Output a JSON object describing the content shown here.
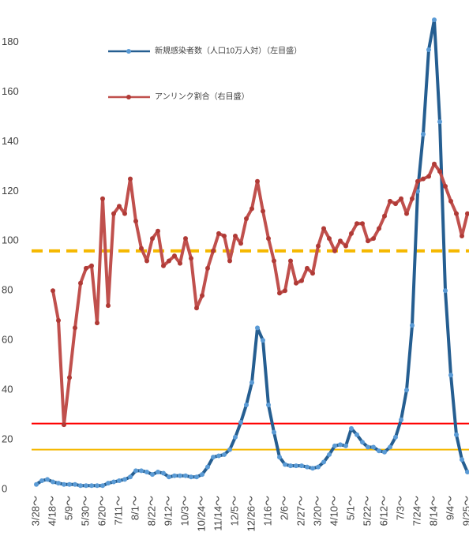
{
  "chart_data": {
    "type": "line",
    "categories": [
      "3/28～",
      null,
      null,
      "4/18～",
      null,
      null,
      "5/9～",
      null,
      null,
      "5/30～",
      null,
      null,
      "6/20～",
      null,
      null,
      "7/11～",
      null,
      null,
      "8/1～",
      null,
      null,
      "8/22～",
      null,
      null,
      "9/12～",
      null,
      null,
      "10/3～",
      null,
      null,
      "10/24～",
      null,
      null,
      "11/14～",
      null,
      null,
      "12/5～",
      null,
      null,
      "12/26～",
      null,
      null,
      "1/16～",
      null,
      null,
      "2/6～",
      null,
      null,
      "2/27～",
      null,
      null,
      "3/20～",
      null,
      null,
      "4/10～",
      null,
      null,
      "5/1～",
      null,
      null,
      "5/22～",
      null,
      null,
      "6/12～",
      null,
      null,
      "7/3～",
      null,
      null,
      "7/24～",
      null,
      null,
      "8/14～",
      null,
      null,
      "9/4～",
      null,
      null,
      "9/25～"
    ],
    "series": [
      {
        "name": "新規感染者数（人口10万人対）（左目盛）",
        "color": "#255e91",
        "marker_color": "#5b9bd5",
        "values": [
          2,
          3.5,
          4,
          3,
          2.5,
          2,
          2,
          2,
          1.5,
          1.5,
          1.5,
          1.5,
          1.5,
          2.5,
          3,
          3.5,
          4,
          5,
          7.5,
          7.5,
          7,
          6,
          7,
          6.5,
          5,
          5.5,
          5.5,
          5.5,
          5,
          5,
          6,
          9,
          13,
          13.5,
          14,
          16,
          21,
          27,
          34,
          43,
          65,
          60,
          34,
          23,
          13,
          10,
          9.5,
          9.5,
          9.5,
          9,
          8.5,
          9,
          11,
          14,
          17.5,
          18,
          17.5,
          24.5,
          22,
          19,
          17,
          17,
          15.5,
          15,
          17,
          21,
          28,
          40,
          66,
          120,
          143,
          177,
          189,
          148,
          80,
          46,
          22,
          12,
          7
        ]
      },
      {
        "name": "アンリンク割合（右目盛）",
        "color": "#c0504d",
        "marker_color": "#b03a36",
        "values": [
          null,
          null,
          null,
          80,
          68,
          26,
          45,
          65,
          83,
          89,
          90,
          67,
          117,
          74,
          111,
          114,
          111,
          125,
          108,
          97,
          92,
          101,
          104,
          90,
          92,
          94,
          91,
          101,
          93,
          73,
          78,
          89,
          96,
          103,
          102,
          92,
          102,
          99,
          109,
          113,
          124,
          112,
          101,
          92,
          79,
          80,
          92,
          83,
          84,
          89,
          87,
          98,
          105,
          101,
          96,
          100,
          98,
          103,
          107,
          107,
          100,
          101,
          105,
          110,
          116,
          115,
          117,
          111,
          117,
          124,
          125,
          126,
          131,
          128,
          122,
          116,
          111,
          102,
          111
        ]
      }
    ],
    "reference_lines": [
      {
        "value": 96,
        "color": "#f5b800",
        "dashed": true
      },
      {
        "value": 26.5,
        "color": "#ff0000",
        "dashed": false
      },
      {
        "value": 16,
        "color": "#f5b800",
        "dashed": false
      }
    ],
    "ylim": [
      0,
      197
    ],
    "yticks": [
      0,
      20,
      40,
      60,
      80,
      100,
      120,
      140,
      160,
      180
    ],
    "grid": false,
    "legend": "top"
  }
}
